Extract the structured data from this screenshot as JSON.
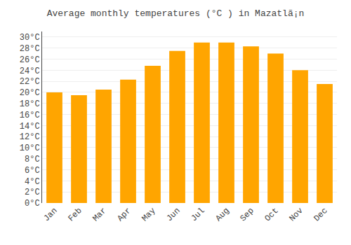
{
  "chart_data": {
    "type": "bar",
    "title": "Average monthly temperatures (°C ) in Mazatlã¡n",
    "categories": [
      "Jan",
      "Feb",
      "Mar",
      "Apr",
      "May",
      "Jun",
      "Jul",
      "Aug",
      "Sep",
      "Oct",
      "Nov",
      "Dec"
    ],
    "values": [
      20.0,
      19.5,
      20.5,
      22.3,
      24.8,
      27.5,
      29.0,
      29.0,
      28.3,
      27.0,
      24.0,
      21.5
    ],
    "color": "#FFA500",
    "ylim": [
      0,
      31
    ],
    "yticks": [
      {
        "value": 0,
        "label": "0°C"
      },
      {
        "value": 2,
        "label": "2°C"
      },
      {
        "value": 4,
        "label": "4°C"
      },
      {
        "value": 6,
        "label": "6°C"
      },
      {
        "value": 8,
        "label": "8°C"
      },
      {
        "value": 10,
        "label": "10°C"
      },
      {
        "value": 12,
        "label": "12°C"
      },
      {
        "value": 14,
        "label": "14°C"
      },
      {
        "value": 16,
        "label": "16°C"
      },
      {
        "value": 18,
        "label": "18°C"
      },
      {
        "value": 20,
        "label": "20°C"
      },
      {
        "value": 22,
        "label": "22°C"
      },
      {
        "value": 24,
        "label": "24°C"
      },
      {
        "value": 26,
        "label": "26°C"
      },
      {
        "value": 28,
        "label": "28°C"
      },
      {
        "value": 30,
        "label": "30°C"
      }
    ],
    "grid": true
  }
}
